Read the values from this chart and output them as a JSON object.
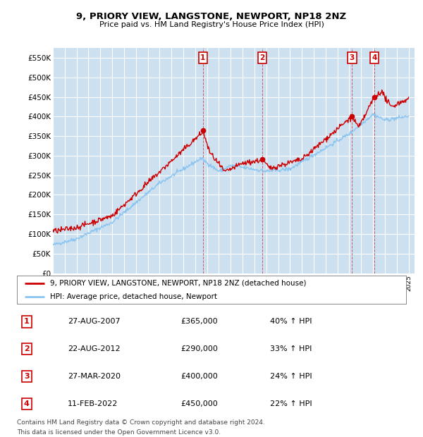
{
  "title": "9, PRIORY VIEW, LANGSTONE, NEWPORT, NP18 2NZ",
  "subtitle": "Price paid vs. HM Land Registry's House Price Index (HPI)",
  "ylim": [
    0,
    575000
  ],
  "yticks": [
    0,
    50000,
    100000,
    150000,
    200000,
    250000,
    300000,
    350000,
    400000,
    450000,
    500000,
    550000
  ],
  "ytick_labels": [
    "£0",
    "£50K",
    "£100K",
    "£150K",
    "£200K",
    "£250K",
    "£300K",
    "£350K",
    "£400K",
    "£450K",
    "£500K",
    "£550K"
  ],
  "hpi_color": "#8ac4f0",
  "price_color": "#cc0000",
  "background_color": "#ffffff",
  "plot_bg_color": "#cce0f0",
  "grid_color": "#ffffff",
  "sale_transactions": [
    {
      "label": "1",
      "date_num": 2007.65,
      "price": 365000,
      "date_str": "27-AUG-2007",
      "pct": "40%",
      "direction": "↑"
    },
    {
      "label": "2",
      "date_num": 2012.65,
      "price": 290000,
      "date_str": "22-AUG-2012",
      "pct": "33%",
      "direction": "↑"
    },
    {
      "label": "3",
      "date_num": 2020.23,
      "price": 400000,
      "date_str": "27-MAR-2020",
      "pct": "24%",
      "direction": "↑"
    },
    {
      "label": "4",
      "date_num": 2022.12,
      "price": 450000,
      "date_str": "11-FEB-2022",
      "pct": "22%",
      "direction": "↑"
    }
  ],
  "legend_entry1": "9, PRIORY VIEW, LANGSTONE, NEWPORT, NP18 2NZ (detached house)",
  "legend_entry2": "HPI: Average price, detached house, Newport",
  "footnote1": "Contains HM Land Registry data © Crown copyright and database right 2024.",
  "footnote2": "This data is licensed under the Open Government Licence v3.0.",
  "table_rows": [
    [
      "1",
      "27-AUG-2007",
      "£365,000",
      "40% ↑ HPI"
    ],
    [
      "2",
      "22-AUG-2012",
      "£290,000",
      "33% ↑ HPI"
    ],
    [
      "3",
      "27-MAR-2020",
      "£400,000",
      "24% ↑ HPI"
    ],
    [
      "4",
      "11-FEB-2022",
      "£450,000",
      "22% ↑ HPI"
    ]
  ]
}
